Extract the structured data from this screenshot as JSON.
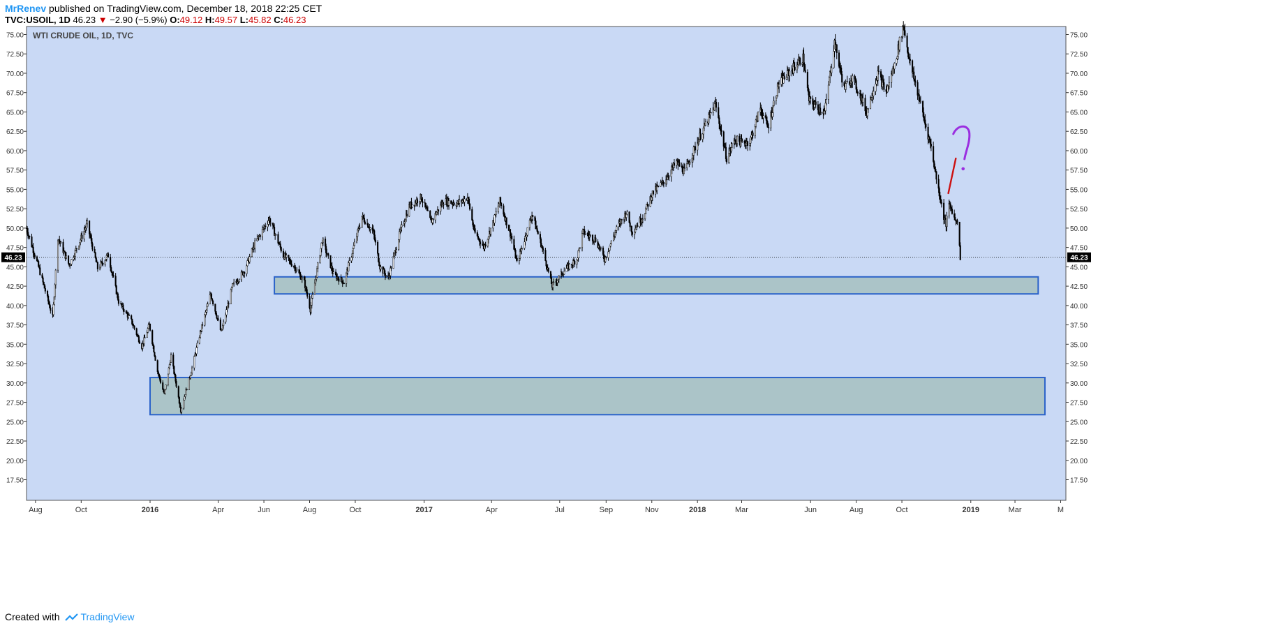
{
  "header": {
    "author": "MrRenev",
    "published": "published on TradingView.com, December 18, 2018 22:25 CET",
    "symbol": "TVC:USOIL, 1D",
    "last": "46.23",
    "change": "−2.90 (−5.9%)",
    "o_label": "O:",
    "o_val": "49.12",
    "h_label": "H:",
    "h_val": "49.57",
    "l_label": "L:",
    "l_val": "45.82",
    "c_label": "C:",
    "c_val": "46.23"
  },
  "footer": {
    "created": "Created with",
    "brand": "TradingView"
  },
  "colors": {
    "plot_bg": "#c9d9f5",
    "zone_fill": "#abc4c8",
    "zone_border": "#2a62c9",
    "candle": "#000000",
    "red_mark": "#cc1111",
    "purple_mark": "#9b2ee0",
    "last_label_bg": "#000000"
  },
  "chart_data": {
    "type": "candlestick",
    "title": "WTI CRUDE OIL, 1D, TVC",
    "xlabel": "",
    "ylabel": "",
    "ylim": [
      17.5,
      76.5
    ],
    "y_ticks": [
      "75.00",
      "72.50",
      "70.00",
      "67.50",
      "65.00",
      "62.50",
      "60.00",
      "57.50",
      "55.00",
      "52.50",
      "50.00",
      "47.50",
      "45.00",
      "42.50",
      "40.00",
      "37.50",
      "35.00",
      "32.50",
      "30.00",
      "27.50",
      "25.00",
      "22.50",
      "20.00",
      "17.50"
    ],
    "x_ticks": [
      {
        "label": "Aug",
        "date": "2015-08-01",
        "bold": false
      },
      {
        "label": "Oct",
        "date": "2015-10-01",
        "bold": false
      },
      {
        "label": "2016",
        "date": "2016-01-01",
        "bold": true
      },
      {
        "label": "Apr",
        "date": "2016-04-01",
        "bold": false
      },
      {
        "label": "Jun",
        "date": "2016-06-01",
        "bold": false
      },
      {
        "label": "Aug",
        "date": "2016-08-01",
        "bold": false
      },
      {
        "label": "Oct",
        "date": "2016-10-01",
        "bold": false
      },
      {
        "label": "2017",
        "date": "2017-01-01",
        "bold": true
      },
      {
        "label": "Apr",
        "date": "2017-04-01",
        "bold": false
      },
      {
        "label": "Jul",
        "date": "2017-07-01",
        "bold": false
      },
      {
        "label": "Sep",
        "date": "2017-09-01",
        "bold": false
      },
      {
        "label": "Nov",
        "date": "2017-11-01",
        "bold": false
      },
      {
        "label": "2018",
        "date": "2018-01-01",
        "bold": true
      },
      {
        "label": "Mar",
        "date": "2018-03-01",
        "bold": false
      },
      {
        "label": "Jun",
        "date": "2018-06-01",
        "bold": false
      },
      {
        "label": "Aug",
        "date": "2018-08-01",
        "bold": false
      },
      {
        "label": "Oct",
        "date": "2018-10-01",
        "bold": false
      },
      {
        "label": "2019",
        "date": "2019-01-01",
        "bold": true
      },
      {
        "label": "Mar",
        "date": "2019-03-01",
        "bold": false
      },
      {
        "label": "M",
        "date": "2019-05-01",
        "bold": false
      }
    ],
    "last_price": "46.23",
    "series": [
      {
        "values": [
          [
            "2015-07-20",
            50.0
          ],
          [
            "2015-08-05",
            45.0
          ],
          [
            "2015-08-24",
            38.5
          ],
          [
            "2015-08-31",
            48.8
          ],
          [
            "2015-09-15",
            45.2
          ],
          [
            "2015-10-09",
            50.5
          ],
          [
            "2015-10-23",
            44.8
          ],
          [
            "2015-11-06",
            46.5
          ],
          [
            "2015-11-20",
            40.5
          ],
          [
            "2015-12-07",
            38.0
          ],
          [
            "2015-12-21",
            34.7
          ],
          [
            "2015-12-31",
            37.5
          ],
          [
            "2016-01-11",
            31.5
          ],
          [
            "2016-01-20",
            28.5
          ],
          [
            "2016-01-29",
            33.5
          ],
          [
            "2016-02-11",
            26.5
          ],
          [
            "2016-02-25",
            31.5
          ],
          [
            "2016-03-08",
            36.5
          ],
          [
            "2016-03-22",
            41.5
          ],
          [
            "2016-04-05",
            36.5
          ],
          [
            "2016-04-20",
            42.5
          ],
          [
            "2016-05-06",
            44.5
          ],
          [
            "2016-05-20",
            48.0
          ],
          [
            "2016-06-08",
            51.2
          ],
          [
            "2016-06-27",
            46.5
          ],
          [
            "2016-07-12",
            45.0
          ],
          [
            "2016-07-25",
            43.0
          ],
          [
            "2016-08-02",
            39.5
          ],
          [
            "2016-08-18",
            48.5
          ],
          [
            "2016-09-02",
            44.0
          ],
          [
            "2016-09-16",
            43.0
          ],
          [
            "2016-10-10",
            51.5
          ],
          [
            "2016-10-25",
            49.5
          ],
          [
            "2016-11-03",
            45.0
          ],
          [
            "2016-11-14",
            43.5
          ],
          [
            "2016-11-30",
            49.5
          ],
          [
            "2016-12-12",
            52.8
          ],
          [
            "2016-12-28",
            54.0
          ],
          [
            "2017-01-10",
            50.8
          ],
          [
            "2017-01-27",
            53.5
          ],
          [
            "2017-02-15",
            53.2
          ],
          [
            "2017-02-28",
            54.0
          ],
          [
            "2017-03-09",
            49.5
          ],
          [
            "2017-03-22",
            47.5
          ],
          [
            "2017-04-04",
            51.0
          ],
          [
            "2017-04-12",
            53.5
          ],
          [
            "2017-04-27",
            49.0
          ],
          [
            "2017-05-05",
            45.5
          ],
          [
            "2017-05-15",
            48.5
          ],
          [
            "2017-05-25",
            51.8
          ],
          [
            "2017-06-06",
            48.0
          ],
          [
            "2017-06-21",
            42.5
          ],
          [
            "2017-07-07",
            44.5
          ],
          [
            "2017-07-24",
            46.0
          ],
          [
            "2017-08-01",
            49.5
          ],
          [
            "2017-08-18",
            48.5
          ],
          [
            "2017-08-30",
            46.0
          ],
          [
            "2017-09-15",
            49.9
          ],
          [
            "2017-09-28",
            52.0
          ],
          [
            "2017-10-06",
            49.5
          ],
          [
            "2017-10-20",
            51.5
          ],
          [
            "2017-11-02",
            54.5
          ],
          [
            "2017-11-17",
            56.0
          ],
          [
            "2017-12-04",
            58.5
          ],
          [
            "2017-12-15",
            57.3
          ],
          [
            "2018-01-04",
            61.8
          ],
          [
            "2018-01-25",
            66.0
          ],
          [
            "2018-02-09",
            59.0
          ],
          [
            "2018-02-20",
            61.5
          ],
          [
            "2018-03-01",
            61.0
          ],
          [
            "2018-03-12",
            61.2
          ],
          [
            "2018-03-26",
            65.5
          ],
          [
            "2018-04-05",
            63.0
          ],
          [
            "2018-04-19",
            68.5
          ],
          [
            "2018-05-07",
            70.5
          ],
          [
            "2018-05-22",
            72.0
          ],
          [
            "2018-05-30",
            66.5
          ],
          [
            "2018-06-12",
            65.5
          ],
          [
            "2018-06-20",
            65.0
          ],
          [
            "2018-07-03",
            74.0
          ],
          [
            "2018-07-16",
            68.0
          ],
          [
            "2018-07-26",
            69.5
          ],
          [
            "2018-08-07",
            67.0
          ],
          [
            "2018-08-15",
            65.0
          ],
          [
            "2018-08-30",
            70.0
          ],
          [
            "2018-09-10",
            67.5
          ],
          [
            "2018-09-21",
            71.0
          ],
          [
            "2018-10-03",
            76.2
          ],
          [
            "2018-10-12",
            71.2
          ],
          [
            "2018-10-24",
            66.8
          ],
          [
            "2018-11-01",
            63.5
          ],
          [
            "2018-11-09",
            60.5
          ],
          [
            "2018-11-16",
            56.5
          ],
          [
            "2018-11-26",
            51.5
          ],
          [
            "2018-11-29",
            50.5
          ],
          [
            "2018-12-03",
            53.0
          ],
          [
            "2018-12-07",
            52.3
          ],
          [
            "2018-12-11",
            51.0
          ],
          [
            "2018-12-14",
            51.2
          ],
          [
            "2018-12-18",
            46.23
          ]
        ]
      }
    ],
    "zones": [
      {
        "from": "2016-06-15",
        "to": "2019-04-01",
        "low": 41.5,
        "high": 43.7
      },
      {
        "from": "2016-01-01",
        "to": "2019-04-10",
        "low": 25.9,
        "high": 30.7
      }
    ],
    "annotations": [
      {
        "type": "line",
        "color": "red",
        "from": [
          "2018-12-02",
          54.5
        ],
        "to": [
          "2018-12-12",
          59.0
        ]
      },
      {
        "type": "question_mark",
        "color": "purple",
        "at": [
          "2018-12-18",
          60.0
        ]
      }
    ]
  }
}
